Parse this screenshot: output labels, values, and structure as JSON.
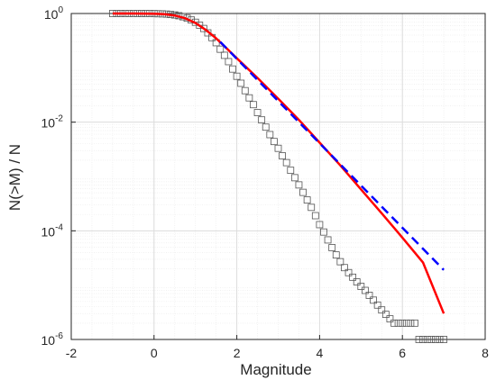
{
  "chart_data": {
    "type": "scatter",
    "title": "",
    "xlabel": "Magnitude",
    "ylabel": "N(>M) / N",
    "xlim": [
      -2,
      8
    ],
    "ylim": [
      1e-06,
      1
    ],
    "yscale": "log",
    "grid": true,
    "minor_grid": true,
    "x_ticks": [
      -2,
      0,
      2,
      4,
      6,
      8
    ],
    "x_tick_labels": [
      "-2",
      "0",
      "2",
      "4",
      "6",
      "8"
    ],
    "y_ticks": [
      {
        "value": 1e-06,
        "base": "10",
        "exp": "-6"
      },
      {
        "value": 0.0001,
        "base": "10",
        "exp": "-4"
      },
      {
        "value": 0.01,
        "base": "10",
        "exp": "-2"
      },
      {
        "value": 1,
        "base": "10",
        "exp": "0"
      }
    ],
    "colors": {
      "markers": "#555555",
      "fit_curve": "#ff0000",
      "reference_line": "#0000ff",
      "grid": "#dcdcdc",
      "axis": "#262626"
    },
    "series": [
      {
        "style": "open-square-markers",
        "x": [
          -1.0,
          -0.9,
          -0.8,
          -0.7,
          -0.6,
          -0.5,
          -0.4,
          -0.3,
          -0.2,
          -0.1,
          0.0,
          0.1,
          0.2,
          0.3,
          0.4,
          0.5,
          0.6,
          0.7,
          0.8,
          0.9,
          1.0,
          1.1,
          1.2,
          1.3,
          1.4,
          1.5,
          1.6,
          1.7,
          1.8,
          1.9,
          2.0,
          2.1,
          2.2,
          2.3,
          2.4,
          2.5,
          2.6,
          2.7,
          2.8,
          2.9,
          3.0,
          3.1,
          3.2,
          3.3,
          3.4,
          3.5,
          3.6,
          3.7,
          3.8,
          3.9,
          4.0,
          4.1,
          4.2,
          4.3,
          4.4,
          4.5,
          4.6,
          4.7,
          4.8,
          4.9,
          5.0,
          5.1,
          5.2,
          5.3,
          5.4,
          5.5,
          5.6,
          5.7,
          5.8,
          5.9,
          6.0,
          6.1,
          6.2,
          6.3,
          6.4,
          6.5,
          6.6,
          6.7,
          6.8,
          6.9,
          7.0
        ],
        "y": [
          1.0,
          1.0,
          1.0,
          1.0,
          1.0,
          1.0,
          1.0,
          0.999,
          0.998,
          0.997,
          0.995,
          0.99,
          0.985,
          0.975,
          0.96,
          0.94,
          0.91,
          0.87,
          0.82,
          0.76,
          0.69,
          0.61,
          0.53,
          0.44,
          0.36,
          0.29,
          0.22,
          0.17,
          0.13,
          0.095,
          0.07,
          0.052,
          0.038,
          0.028,
          0.021,
          0.015,
          0.011,
          0.0081,
          0.0059,
          0.0044,
          0.0033,
          0.0024,
          0.0018,
          0.0013,
          0.00095,
          0.0007,
          0.00051,
          0.00037,
          0.00027,
          0.00019,
          0.00013,
          9.5e-05,
          6.8e-05,
          4.9e-05,
          3.6e-05,
          2.7e-05,
          2.1e-05,
          1.7e-05,
          1.4e-05,
          1.15e-05,
          9.5e-06,
          8e-06,
          6.5e-06,
          5.3e-06,
          4.3e-06,
          3.5e-06,
          2.9e-06,
          2.4e-06,
          2e-06,
          2e-06,
          2e-06,
          2e-06,
          2e-06,
          2e-06,
          1e-06,
          1e-06,
          1e-06,
          1e-06,
          1e-06,
          1e-06,
          1e-06
        ]
      },
      {
        "style": "solid-line",
        "x": [
          -1.0,
          -0.5,
          0.0,
          0.25,
          0.5,
          0.75,
          1.0,
          1.25,
          1.5,
          1.75,
          2.0,
          2.5,
          3.0,
          3.5,
          4.0,
          4.5,
          5.0,
          5.5,
          6.0,
          6.5,
          7.0
        ],
        "y": [
          1.0,
          0.999,
          0.99,
          0.97,
          0.92,
          0.82,
          0.67,
          0.5,
          0.35,
          0.23,
          0.15,
          0.065,
          0.027,
          0.011,
          0.0042,
          0.0016,
          0.00058,
          0.00021,
          7.5e-05,
          2.6e-05,
          3e-06
        ]
      },
      {
        "style": "dashed-line",
        "x": [
          1.6,
          7.0
        ],
        "y": [
          0.3,
          1.9e-05
        ]
      }
    ]
  }
}
